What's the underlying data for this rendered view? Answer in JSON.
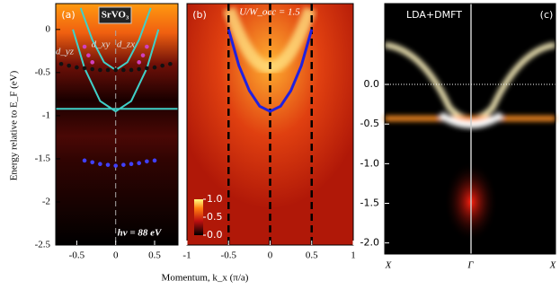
{
  "chart_data": [
    {
      "type": "heatmap",
      "panel_label": "(a)",
      "sample": "SrVO₃",
      "ylabel": "Energy relative to E_F (eV)",
      "xlabel": "Momentum, k_x (π/a)",
      "annotations": [
        "d_yz",
        "d_xy",
        "d_zx",
        "hν = 88 eV"
      ],
      "xlim": [
        -0.77,
        0.8
      ],
      "xticks": [
        -0.5,
        0,
        0.5
      ],
      "ylim": [
        -2.5,
        0.3
      ],
      "yticks": [
        0,
        -0.5,
        -1,
        -1.5,
        -2,
        -2.5
      ],
      "series": [
        {
          "style": "line",
          "color": "#40d0c8",
          "x": [
            -0.55,
            -0.4,
            -0.2,
            0,
            0.2,
            0.4,
            0.55
          ],
          "values": [
            0,
            -0.45,
            -0.83,
            -0.95,
            -0.83,
            -0.45,
            0
          ]
        },
        {
          "style": "line",
          "color": "#40d0c8",
          "x": [
            -0.45,
            -0.3,
            -0.15,
            0,
            0.15,
            0.3,
            0.45
          ],
          "values": [
            0.25,
            -0.12,
            -0.38,
            -0.47,
            -0.38,
            -0.12,
            0.25
          ]
        },
        {
          "style": "line",
          "color": "#40d0c8",
          "x": [
            -0.77,
            0.8
          ],
          "values": [
            -0.92,
            -0.92
          ]
        },
        {
          "style": "dots",
          "color": "#111111",
          "x": [
            -0.7,
            -0.6,
            -0.5,
            -0.4,
            -0.3,
            -0.2,
            -0.1,
            0,
            0.1,
            0.2,
            0.3,
            0.4,
            0.5,
            0.6,
            0.7
          ],
          "values": [
            -0.4,
            -0.42,
            -0.44,
            -0.45,
            -0.46,
            -0.47,
            -0.47,
            -0.47,
            -0.47,
            -0.47,
            -0.46,
            -0.45,
            -0.44,
            -0.42,
            -0.4
          ]
        },
        {
          "style": "dots",
          "color": "#d040c0",
          "x": [
            -0.4,
            -0.35,
            -0.3,
            0.3,
            0.35,
            0.4
          ],
          "values": [
            -0.2,
            -0.3,
            -0.38,
            -0.38,
            -0.3,
            -0.2
          ]
        },
        {
          "style": "dots",
          "color": "#4040ff",
          "x": [
            -0.4,
            -0.3,
            -0.2,
            -0.1,
            0,
            0.1,
            0.2,
            0.3,
            0.4,
            0.5
          ],
          "values": [
            -1.52,
            -1.54,
            -1.56,
            -1.57,
            -1.58,
            -1.57,
            -1.56,
            -1.55,
            -1.53,
            -1.52
          ]
        }
      ]
    },
    {
      "type": "heatmap",
      "panel_label": "(b)",
      "title": "U/W_occ = 1.5",
      "xlim": [
        -1,
        1
      ],
      "xticks": [
        -1,
        -0.5,
        0,
        0.5,
        1
      ],
      "ylim": [
        -2.5,
        0.3
      ],
      "vlines": [
        -0.5,
        0,
        0.5
      ],
      "colorbar_ticks": [
        {
          "value": 1,
          "label": "1.0"
        },
        {
          "value": 0.5,
          "label": "0.5"
        },
        {
          "value": 0,
          "label": "0.0"
        }
      ],
      "series": [
        {
          "style": "line",
          "color": "#2020e0",
          "x": [
            -0.5,
            -0.375,
            -0.25,
            -0.125,
            0,
            0.125,
            0.25,
            0.375,
            0.5
          ],
          "values": [
            0,
            -0.42,
            -0.71,
            -0.89,
            -0.95,
            -0.89,
            -0.71,
            -0.42,
            0
          ]
        }
      ]
    },
    {
      "type": "spectral",
      "panel_label": "(c)",
      "title": "LDA+DMFT",
      "categories": [
        "X",
        "Γ",
        "X"
      ],
      "ylim": [
        -2.14,
        1.02
      ],
      "yticks": [
        {
          "value": 0,
          "label": "0.0"
        },
        {
          "value": -0.5,
          "label": "-0.5"
        },
        {
          "value": -1,
          "label": "-1.0"
        },
        {
          "value": -1.5,
          "label": "-1.5"
        },
        {
          "value": -2,
          "label": "-2.0"
        }
      ]
    }
  ]
}
